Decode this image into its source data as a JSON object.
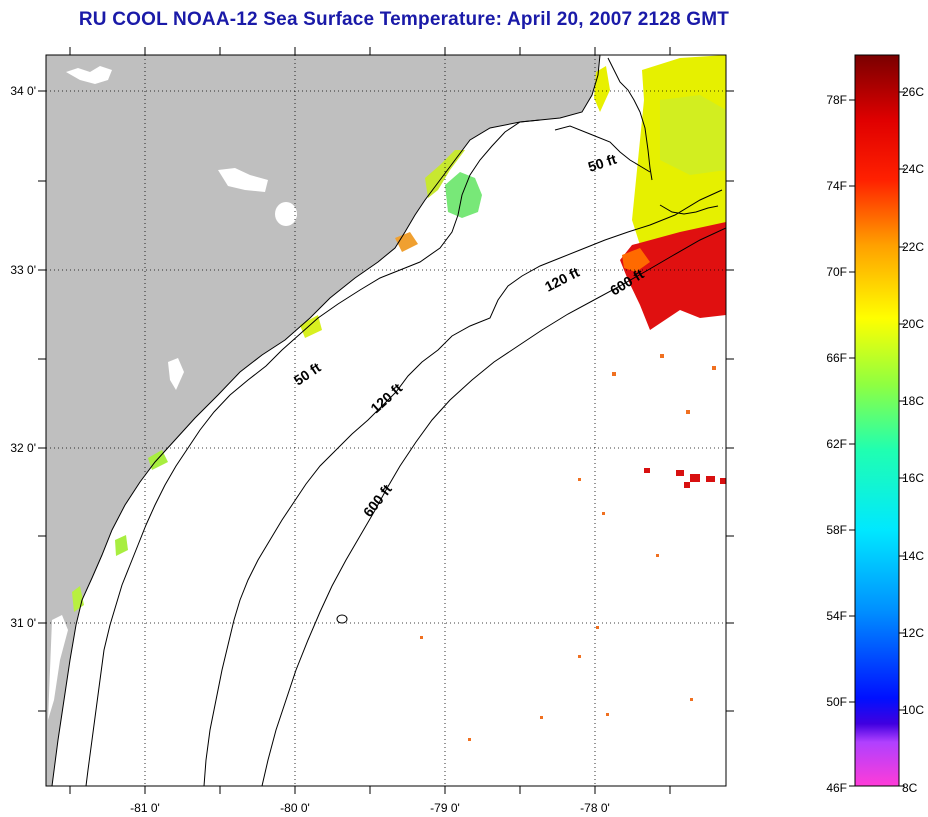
{
  "title": "RU COOL  NOAA-12  Sea Surface Temperature:  April 20, 2007 2128 GMT",
  "map": {
    "lon_ticks": [
      "-81 0'",
      "-80 0'",
      "-79 0'",
      "-78 0'"
    ],
    "lat_ticks": [
      "34 0'",
      "33 0'",
      "32 0'",
      "31 0'"
    ],
    "contour_labels": [
      "50 ft",
      "120 ft",
      "600 ft",
      "50 ft",
      "120 ft",
      "600 ft"
    ],
    "colors": {
      "land": "#bfbfbf",
      "ocean_no_data": "#ffffff"
    }
  },
  "colorbar": {
    "range_c": [
      8,
      27
    ],
    "range_f": [
      46,
      80
    ],
    "f_labels": [
      "78F",
      "74F",
      "70F",
      "66F",
      "62F",
      "58F",
      "54F",
      "50F",
      "46F"
    ],
    "c_labels": [
      "26C",
      "24C",
      "22C",
      "20C",
      "18C",
      "16C",
      "14C",
      "12C",
      "10C",
      "8C"
    ]
  }
}
